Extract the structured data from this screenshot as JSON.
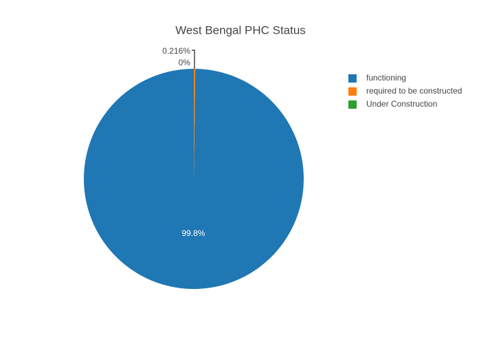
{
  "chart_data": {
    "type": "pie",
    "title": "West Bengal PHC Status",
    "categories": [
      "functioning",
      "required to be constructed",
      "Under Construction"
    ],
    "values": [
      99.8,
      0.216,
      0
    ],
    "value_labels": [
      "99.8%",
      "0.216%",
      "0%"
    ],
    "colors": [
      "#1f77b4",
      "#ff7f0e",
      "#2ca02c"
    ]
  }
}
